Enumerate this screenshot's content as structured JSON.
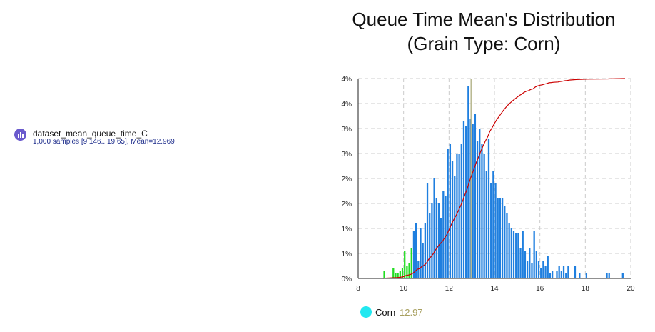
{
  "variable": {
    "name": "dataset_mean_queue_time_C",
    "summary": "1,000 samples [9.146...19.65], Mean=12.969",
    "icon": "histogram-icon",
    "icon_color": "#6a5acd"
  },
  "legend": {
    "label": "Corn",
    "value": "12.97",
    "marker_color": "#22e8f0"
  },
  "chart_data": {
    "type": "bar",
    "title": "Queue Time Mean's Distribution",
    "subtitle": "(Grain Type: Corn)",
    "xlabel": "",
    "ylabel": "",
    "xlim": [
      8,
      20
    ],
    "xticks": [
      8,
      10,
      12,
      14,
      16,
      18,
      20
    ],
    "yticks": [
      0,
      1,
      2,
      3,
      4,
      5,
      6,
      7,
      8
    ],
    "ytick_labels": [
      "0%",
      "1%",
      "1%",
      "2%",
      "2%",
      "3%",
      "3%",
      "4%",
      "4%"
    ],
    "ylim": [
      0,
      8
    ],
    "grid": true,
    "bin_width": 0.1,
    "bins": [
      [
        9.15,
        0.3
      ],
      [
        9.55,
        0.4
      ],
      [
        9.65,
        0.2
      ],
      [
        9.75,
        0.2
      ],
      [
        9.85,
        0.3
      ],
      [
        9.95,
        0.4
      ],
      [
        10.05,
        1.1
      ],
      [
        10.15,
        0.5
      ],
      [
        10.25,
        0.6
      ],
      [
        10.35,
        1.2
      ],
      [
        10.45,
        1.9
      ],
      [
        10.55,
        2.2
      ],
      [
        10.65,
        0.7
      ],
      [
        10.75,
        2.0
      ],
      [
        10.85,
        1.4
      ],
      [
        10.95,
        2.2
      ],
      [
        11.05,
        3.8
      ],
      [
        11.15,
        2.6
      ],
      [
        11.25,
        3.0
      ],
      [
        11.35,
        4.0
      ],
      [
        11.45,
        3.2
      ],
      [
        11.55,
        3.0
      ],
      [
        11.65,
        2.4
      ],
      [
        11.75,
        3.5
      ],
      [
        11.85,
        3.3
      ],
      [
        11.95,
        5.2
      ],
      [
        12.05,
        5.4
      ],
      [
        12.15,
        4.7
      ],
      [
        12.25,
        4.1
      ],
      [
        12.35,
        5.0
      ],
      [
        12.45,
        5.0
      ],
      [
        12.55,
        5.4
      ],
      [
        12.65,
        6.3
      ],
      [
        12.75,
        6.1
      ],
      [
        12.85,
        7.7
      ],
      [
        12.95,
        6.4
      ],
      [
        13.05,
        6.2
      ],
      [
        13.15,
        6.6
      ],
      [
        13.25,
        5.5
      ],
      [
        13.35,
        6.0
      ],
      [
        13.45,
        5.4
      ],
      [
        13.55,
        5.0
      ],
      [
        13.65,
        4.3
      ],
      [
        13.75,
        5.6
      ],
      [
        13.85,
        3.8
      ],
      [
        13.95,
        4.3
      ],
      [
        14.05,
        3.8
      ],
      [
        14.15,
        3.2
      ],
      [
        14.25,
        3.2
      ],
      [
        14.35,
        3.2
      ],
      [
        14.45,
        2.9
      ],
      [
        14.55,
        2.6
      ],
      [
        14.65,
        2.2
      ],
      [
        14.75,
        2.0
      ],
      [
        14.85,
        1.9
      ],
      [
        14.95,
        1.8
      ],
      [
        15.05,
        1.8
      ],
      [
        15.15,
        1.2
      ],
      [
        15.25,
        1.9
      ],
      [
        15.35,
        1.1
      ],
      [
        15.45,
        0.7
      ],
      [
        15.55,
        1.2
      ],
      [
        15.65,
        0.6
      ],
      [
        15.75,
        1.9
      ],
      [
        15.85,
        1.1
      ],
      [
        15.95,
        0.7
      ],
      [
        16.05,
        0.4
      ],
      [
        16.15,
        0.7
      ],
      [
        16.25,
        0.5
      ],
      [
        16.35,
        0.9
      ],
      [
        16.45,
        0.2
      ],
      [
        16.55,
        0.3
      ],
      [
        16.75,
        0.3
      ],
      [
        16.85,
        0.5
      ],
      [
        16.95,
        0.3
      ],
      [
        17.05,
        0.5
      ],
      [
        17.15,
        0.2
      ],
      [
        17.25,
        0.5
      ],
      [
        17.55,
        0.5
      ],
      [
        17.75,
        0.2
      ],
      [
        18.05,
        0.2
      ],
      [
        18.95,
        0.2
      ],
      [
        19.05,
        0.2
      ],
      [
        19.65,
        0.2
      ]
    ],
    "threshold": 10.4,
    "mean_marker": 12.97,
    "colors": {
      "below_threshold": "#22dd22",
      "bars": "#1f7fdf",
      "cdf": "#cc0000",
      "mean_line": "#b8b890",
      "grid": "#cccccc",
      "axis": "#222222"
    }
  }
}
